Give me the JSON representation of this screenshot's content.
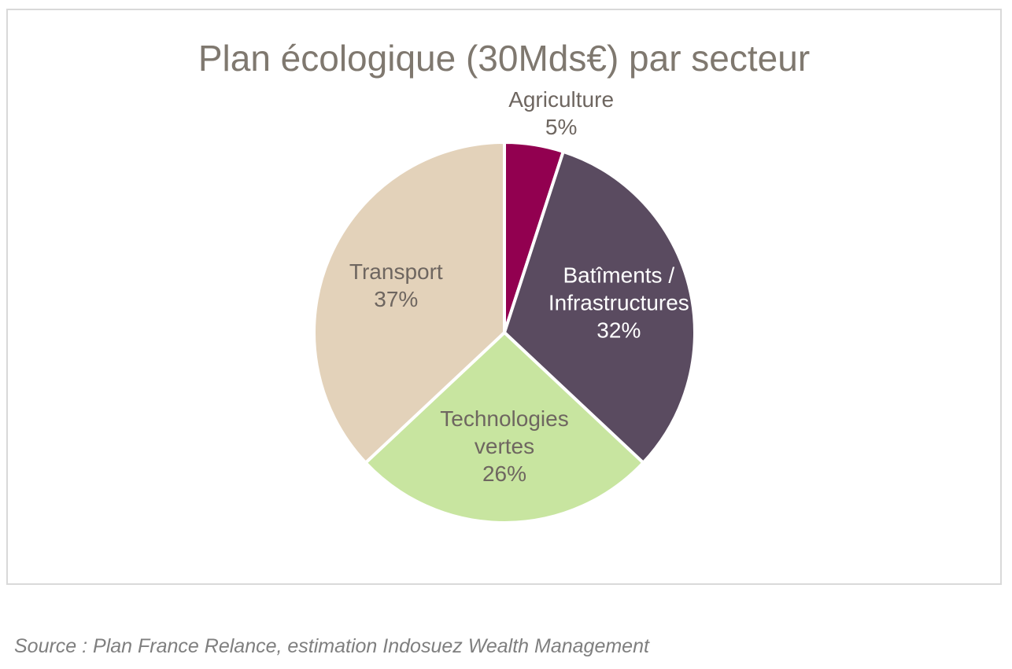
{
  "chart_data": {
    "type": "pie",
    "title": "Plan écologique (30Mds€) par secteur",
    "start_angle_deg": 0,
    "direction": "clockwise",
    "slices": [
      {
        "lines": [
          "Agriculture",
          "5%"
        ],
        "value": 5,
        "color": "#920050",
        "label_color": "#6e6660",
        "label_position": "outside"
      },
      {
        "lines": [
          "Batîments /",
          "Infrastructures",
          "32%"
        ],
        "value": 32,
        "color": "#5a4b60",
        "label_color": "#ffffff",
        "label_position": "inside"
      },
      {
        "lines": [
          "Technologies",
          "vertes",
          "26%"
        ],
        "value": 26,
        "color": "#c8e5a0",
        "label_color": "#6e6660",
        "label_position": "inside"
      },
      {
        "lines": [
          "Transport",
          "37%"
        ],
        "value": 37,
        "color": "#e3d2ba",
        "label_color": "#6e6660",
        "label_position": "inside"
      }
    ],
    "legend": "none"
  },
  "source": "Source : Plan France Relance, estimation Indosuez Wealth Management"
}
